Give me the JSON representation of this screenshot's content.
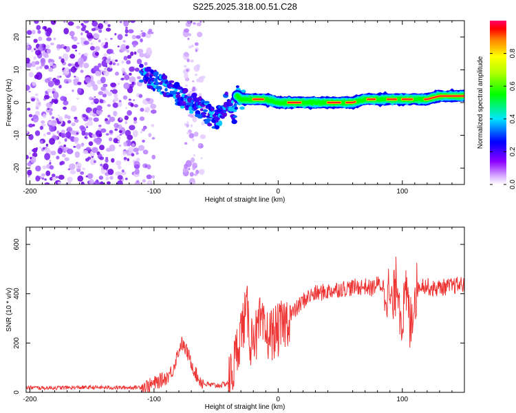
{
  "title": "S225.2025.318.00.51.C28",
  "chart_data": [
    {
      "type": "heatmap",
      "xlabel": "Height of straight line (km)",
      "ylabel": "Frequency (Hz)",
      "xlim": [
        -203,
        150
      ],
      "ylim": [
        -25,
        25
      ],
      "xticks": [
        -200,
        -100,
        0,
        100
      ],
      "yticks": [
        -20,
        -10,
        0,
        10,
        20
      ],
      "xtick_labels": [
        "-200",
        "-100",
        "0",
        "100"
      ],
      "ytick_labels": [
        "-20",
        "-10",
        "0",
        "10",
        "20"
      ],
      "ridge": {
        "x": [
          -110,
          -100,
          -90,
          -80,
          -70,
          -60,
          -52,
          -47,
          -42,
          -38,
          -35,
          -33,
          -30,
          -20,
          -10,
          0,
          10,
          20,
          40,
          60,
          70,
          80,
          90,
          100,
          110,
          120,
          130,
          150
        ],
        "y": [
          9,
          7,
          5,
          2,
          0,
          -2,
          -5,
          -4,
          0,
          -1,
          -4,
          2,
          1,
          1,
          1,
          0,
          0,
          0,
          0,
          0,
          1,
          1,
          1,
          1,
          1,
          1,
          2,
          2
        ]
      },
      "colorbar": {
        "label": "Normalized spectral amplitude",
        "range": [
          0,
          1
        ],
        "ticks": [
          0.0,
          0.2,
          0.4,
          0.6,
          0.8
        ],
        "tick_labels": [
          "0.0",
          "0.2",
          "0.4",
          "0.6",
          "0.8"
        ]
      }
    },
    {
      "type": "line",
      "xlabel": "Height of straight line (km)",
      "ylabel": "SNR (10 * v/v)",
      "xlim": [
        -203,
        150
      ],
      "ylim": [
        0,
        670
      ],
      "xticks": [
        -200,
        -100,
        0,
        100
      ],
      "yticks": [
        0,
        200,
        400,
        600
      ],
      "xtick_labels": [
        "-200",
        "-100",
        "0",
        "100"
      ],
      "ytick_labels": [
        "0",
        "200",
        "400",
        "600"
      ],
      "series": [
        {
          "name": "SNR",
          "color": "#ee3333",
          "x": [
            -203,
            -190,
            -170,
            -150,
            -130,
            -115,
            -105,
            -98,
            -90,
            -85,
            -82,
            -78,
            -74,
            -70,
            -65,
            -60,
            -55,
            -50,
            -45,
            -40,
            -36,
            -33,
            -30,
            -27,
            -25,
            -22,
            -20,
            -17,
            -15,
            -12,
            -10,
            -5,
            0,
            5,
            10,
            15,
            20,
            25,
            30,
            40,
            50,
            60,
            70,
            75,
            80,
            85,
            88,
            90,
            92,
            94,
            96,
            98,
            100,
            102,
            104,
            106,
            108,
            110,
            115,
            120,
            125,
            130,
            140,
            150
          ],
          "y": [
            20,
            18,
            19,
            20,
            19,
            20,
            25,
            40,
            60,
            90,
            140,
            200,
            170,
            120,
            60,
            35,
            30,
            28,
            30,
            40,
            100,
            180,
            250,
            300,
            330,
            200,
            260,
            220,
            280,
            250,
            230,
            240,
            250,
            280,
            310,
            340,
            370,
            390,
            400,
            410,
            420,
            425,
            430,
            420,
            440,
            430,
            420,
            380,
            340,
            400,
            480,
            350,
            300,
            360,
            400,
            260,
            330,
            400,
            440,
            430,
            420,
            425,
            430,
            440
          ]
        }
      ]
    }
  ]
}
